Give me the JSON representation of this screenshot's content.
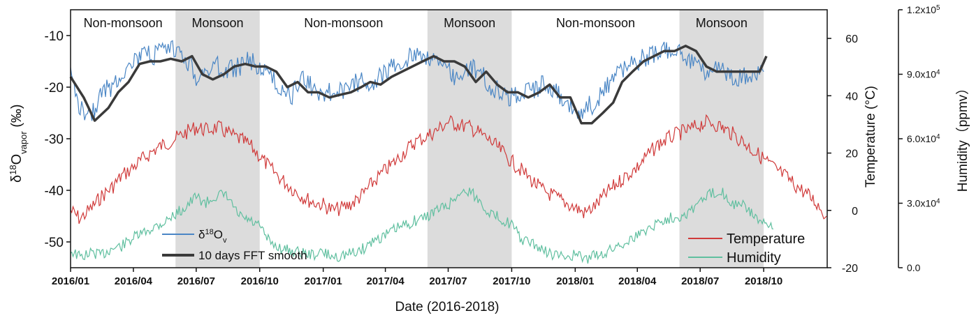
{
  "chart_data": {
    "type": "line",
    "xlabel": "Date (2016-2018)",
    "x_ticks": [
      "2016/01",
      "2016/04",
      "2016/07",
      "2016/10",
      "2017/01",
      "2017/04",
      "2017/07",
      "2017/10",
      "2018/01",
      "2018/04",
      "2018/07",
      "2018/10"
    ],
    "x_range": [
      "2016-01-01",
      "2019-01-01"
    ],
    "axes": {
      "left": {
        "label": "δ18Ovapor (‰)",
        "label_main": "δ",
        "label_sup": "18",
        "label_O": "O",
        "label_sub": "vapor",
        "label_unit": " (‰)",
        "ylim": [
          -55,
          -5
        ],
        "ticks": [
          -10,
          -20,
          -30,
          -40,
          -50
        ]
      },
      "right1": {
        "label": "Temperature (°C)",
        "ylim": [
          -20,
          70
        ],
        "ticks": [
          60,
          40,
          20,
          0,
          -20
        ]
      },
      "right2": {
        "label": "Humidity（ppmv）",
        "ylim": [
          0,
          120000
        ],
        "ticks": [
          "1.2x10",
          "9.0x10",
          "6.0x10",
          "3.0x10",
          "0.0"
        ],
        "tick_values": [
          120000,
          90000,
          60000,
          30000,
          0
        ],
        "tick_exp": [
          "5",
          "4",
          "4",
          "4",
          ""
        ]
      }
    },
    "periods": [
      {
        "label": "Non-monsoon",
        "start": "2016-01-01",
        "end": "2016-06-01",
        "shaded": false
      },
      {
        "label": "Monsoon",
        "start": "2016-06-01",
        "end": "2016-10-01",
        "shaded": true
      },
      {
        "label": "Non-monsoon",
        "start": "2016-10-01",
        "end": "2017-06-01",
        "shaded": false
      },
      {
        "label": "Monsoon",
        "start": "2017-06-01",
        "end": "2017-10-01",
        "shaded": true
      },
      {
        "label": "Non-monsoon",
        "start": "2017-10-01",
        "end": "2018-06-01",
        "shaded": false
      },
      {
        "label": "Monsoon",
        "start": "2018-06-01",
        "end": "2018-10-01",
        "shaded": true
      }
    ],
    "series": [
      {
        "name": "δ18Ov",
        "legend_main": "δ",
        "legend_sup": "18",
        "legend_O": "O",
        "legend_sub": "v",
        "axis": "left",
        "color": "#4a86c5",
        "x": [
          "2016-01-01",
          "2016-01-15",
          "2016-02-01",
          "2016-02-15",
          "2016-03-01",
          "2016-03-15",
          "2016-04-01",
          "2016-04-15",
          "2016-05-01",
          "2016-05-15",
          "2016-06-01",
          "2016-06-15",
          "2016-07-01",
          "2016-07-15",
          "2016-08-01",
          "2016-08-15",
          "2016-09-01",
          "2016-09-15",
          "2016-10-01",
          "2016-10-15",
          "2016-11-01",
          "2016-11-15",
          "2016-12-01",
          "2016-12-15",
          "2017-01-01",
          "2017-01-15",
          "2017-02-01",
          "2017-02-15",
          "2017-03-01",
          "2017-03-15",
          "2017-04-01",
          "2017-04-15",
          "2017-05-01",
          "2017-05-15",
          "2017-06-01",
          "2017-06-15",
          "2017-07-01",
          "2017-07-15",
          "2017-08-01",
          "2017-08-15",
          "2017-09-01",
          "2017-09-15",
          "2017-10-01",
          "2017-10-15",
          "2017-11-01",
          "2017-11-15",
          "2017-12-01",
          "2017-12-15",
          "2018-01-01",
          "2018-01-15",
          "2018-02-01",
          "2018-02-15",
          "2018-03-01",
          "2018-03-15",
          "2018-04-01",
          "2018-04-15",
          "2018-05-01",
          "2018-05-15",
          "2018-06-01",
          "2018-06-15",
          "2018-07-01",
          "2018-07-15",
          "2018-08-01",
          "2018-08-15",
          "2018-09-01",
          "2018-09-15",
          "2018-10-01"
        ],
        "y": [
          -18,
          -24,
          -25,
          -21,
          -20,
          -17,
          -15,
          -14,
          -14,
          -13,
          -13,
          -14,
          -18,
          -17,
          -16,
          -17,
          -16,
          -15,
          -16,
          -18,
          -20,
          -22,
          -18,
          -20,
          -21,
          -21,
          -21,
          -19,
          -19,
          -19,
          -17,
          -16,
          -15,
          -13,
          -14,
          -15,
          -17,
          -18,
          -16,
          -17,
          -20,
          -21,
          -22,
          -21,
          -21,
          -19,
          -21,
          -22,
          -25,
          -24,
          -23,
          -20,
          -17,
          -16,
          -15,
          -14,
          -13,
          -13,
          -13,
          -15,
          -17,
          -17,
          -16,
          -18,
          -18,
          -17,
          -17
        ]
      },
      {
        "name": "10 days FFT smooth",
        "axis": "left",
        "color": "#3a3a3a",
        "x": [
          "2016-01-01",
          "2016-01-20",
          "2016-02-05",
          "2016-02-25",
          "2016-03-10",
          "2016-03-25",
          "2016-04-10",
          "2016-04-25",
          "2016-05-10",
          "2016-05-25",
          "2016-06-10",
          "2016-06-25",
          "2016-07-10",
          "2016-07-25",
          "2016-08-10",
          "2016-08-25",
          "2016-09-10",
          "2016-09-25",
          "2016-10-10",
          "2016-10-25",
          "2016-11-10",
          "2016-11-25",
          "2016-12-10",
          "2016-12-25",
          "2017-01-10",
          "2017-01-25",
          "2017-02-10",
          "2017-02-25",
          "2017-03-10",
          "2017-03-25",
          "2017-04-10",
          "2017-04-25",
          "2017-05-10",
          "2017-05-25",
          "2017-06-10",
          "2017-06-25",
          "2017-07-10",
          "2017-07-25",
          "2017-08-10",
          "2017-08-25",
          "2017-09-10",
          "2017-09-25",
          "2017-10-10",
          "2017-10-25",
          "2017-11-10",
          "2017-11-25",
          "2017-12-10",
          "2017-12-25",
          "2018-01-10",
          "2018-01-25",
          "2018-02-10",
          "2018-02-25",
          "2018-03-10",
          "2018-03-25",
          "2018-04-10",
          "2018-04-25",
          "2018-05-10",
          "2018-05-25",
          "2018-06-10",
          "2018-06-25",
          "2018-07-10",
          "2018-07-25",
          "2018-08-10",
          "2018-08-25",
          "2018-09-10",
          "2018-09-25",
          "2018-10-05"
        ],
        "y": [
          -18,
          -22,
          -26.5,
          -24,
          -21,
          -19,
          -15.5,
          -15,
          -15,
          -14.5,
          -15,
          -14,
          -17.5,
          -18.5,
          -17.5,
          -16,
          -15.5,
          -16,
          -16,
          -17,
          -20,
          -19,
          -21,
          -21,
          -22,
          -21.5,
          -21,
          -20,
          -19,
          -19.5,
          -18,
          -17,
          -16,
          -15,
          -14,
          -15,
          -15,
          -16,
          -19,
          -17,
          -19.5,
          -21,
          -21,
          -22,
          -21,
          -19.5,
          -22,
          -22,
          -27,
          -27,
          -25,
          -23,
          -19,
          -17,
          -15,
          -14,
          -13,
          -13,
          -12,
          -13,
          -16,
          -17,
          -17,
          -17,
          -17,
          -17,
          -14
        ]
      },
      {
        "name": "Temperature",
        "axis": "right1",
        "color": "#d03a3a",
        "x": [
          "2016-01-01",
          "2016-01-15",
          "2016-02-01",
          "2016-02-15",
          "2016-03-01",
          "2016-03-15",
          "2016-04-01",
          "2016-04-15",
          "2016-05-01",
          "2016-05-15",
          "2016-06-01",
          "2016-06-15",
          "2016-07-01",
          "2016-07-15",
          "2016-08-01",
          "2016-08-15",
          "2016-09-01",
          "2016-09-15",
          "2016-10-01",
          "2016-10-15",
          "2016-11-01",
          "2016-11-15",
          "2016-12-01",
          "2016-12-15",
          "2017-01-01",
          "2017-01-15",
          "2017-02-01",
          "2017-02-15",
          "2017-03-01",
          "2017-03-15",
          "2017-04-01",
          "2017-04-15",
          "2017-05-01",
          "2017-05-15",
          "2017-06-01",
          "2017-06-15",
          "2017-07-01",
          "2017-07-15",
          "2017-08-01",
          "2017-08-15",
          "2017-09-01",
          "2017-09-15",
          "2017-10-01",
          "2017-10-15",
          "2017-11-01",
          "2017-11-15",
          "2017-12-01",
          "2017-12-15",
          "2018-01-01",
          "2018-01-15",
          "2018-02-01",
          "2018-02-15",
          "2018-03-01",
          "2018-03-15",
          "2018-04-01",
          "2018-04-15",
          "2018-05-01",
          "2018-05-15",
          "2018-06-01",
          "2018-06-15",
          "2018-07-01",
          "2018-07-15",
          "2018-08-01",
          "2018-08-15",
          "2018-09-01",
          "2018-09-15",
          "2018-10-01",
          "2018-10-15",
          "2018-11-01",
          "2018-11-15",
          "2018-12-01",
          "2018-12-15",
          "2018-12-31"
        ],
        "y": [
          0,
          -3,
          1,
          5,
          8,
          12,
          15,
          18,
          21,
          23,
          25,
          27,
          29,
          28,
          29,
          27,
          25,
          23,
          19,
          15,
          11,
          8,
          5,
          3,
          2,
          0,
          1,
          3,
          6,
          10,
          14,
          17,
          21,
          24,
          26,
          28,
          31,
          30,
          29,
          27,
          24,
          21,
          17,
          14,
          10,
          7,
          5,
          3,
          1,
          -1,
          2,
          6,
          9,
          12,
          15,
          19,
          23,
          25,
          27,
          28,
          30,
          31,
          29,
          27,
          24,
          21,
          18,
          15,
          12,
          9,
          6,
          3,
          -2
        ]
      },
      {
        "name": "Humidity",
        "axis": "right2",
        "color": "#5fbf9f",
        "x": [
          "2016-01-01",
          "2016-01-15",
          "2016-02-01",
          "2016-02-15",
          "2016-03-01",
          "2016-03-15",
          "2016-04-01",
          "2016-04-15",
          "2016-05-01",
          "2016-05-15",
          "2016-06-01",
          "2016-06-15",
          "2016-07-01",
          "2016-07-15",
          "2016-08-01",
          "2016-08-15",
          "2016-09-01",
          "2016-09-15",
          "2016-10-01",
          "2016-10-15",
          "2016-11-01",
          "2016-11-15",
          "2016-12-01",
          "2016-12-15",
          "2017-01-01",
          "2017-01-15",
          "2017-02-01",
          "2017-02-15",
          "2017-03-01",
          "2017-03-15",
          "2017-04-01",
          "2017-04-15",
          "2017-05-01",
          "2017-05-15",
          "2017-06-01",
          "2017-06-15",
          "2017-07-01",
          "2017-07-15",
          "2017-08-01",
          "2017-08-15",
          "2017-09-01",
          "2017-09-15",
          "2017-10-01",
          "2017-10-15",
          "2017-11-01",
          "2017-11-15",
          "2017-12-01",
          "2017-12-15",
          "2018-01-01",
          "2018-01-15",
          "2018-02-01",
          "2018-02-15",
          "2018-03-01",
          "2018-03-15",
          "2018-04-01",
          "2018-04-15",
          "2018-05-01",
          "2018-05-15",
          "2018-06-01",
          "2018-06-15",
          "2018-07-01",
          "2018-07-15",
          "2018-08-01",
          "2018-08-15",
          "2018-09-01",
          "2018-09-15",
          "2018-10-01",
          "2018-10-15"
        ],
        "y": [
          8000,
          5000,
          7000,
          6000,
          9000,
          10000,
          14000,
          16000,
          19000,
          21000,
          25000,
          28000,
          33000,
          30000,
          34000,
          33000,
          24000,
          22000,
          19000,
          12000,
          9000,
          8000,
          7000,
          6000,
          7000,
          5000,
          6000,
          7000,
          9000,
          13000,
          15000,
          18000,
          20000,
          22000,
          24000,
          27000,
          29000,
          34000,
          36000,
          31000,
          25000,
          23000,
          20000,
          13000,
          11000,
          8000,
          6000,
          5000,
          6000,
          4000,
          6000,
          7000,
          10000,
          12000,
          15000,
          18000,
          21000,
          23000,
          24000,
          26000,
          31000,
          34000,
          36000,
          30000,
          29000,
          25000,
          20000,
          18000
        ]
      }
    ],
    "legend": [
      "δ18Ov",
      "10 days FFT smooth",
      "Temperature",
      "Humidity"
    ],
    "grid": false
  }
}
